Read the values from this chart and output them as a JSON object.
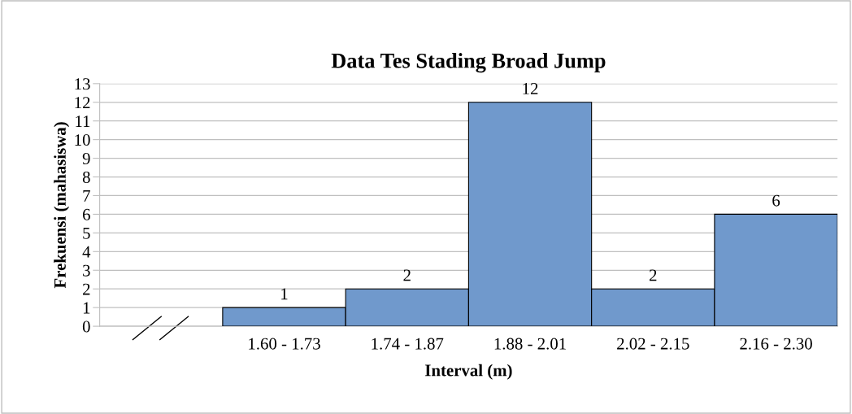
{
  "chart_data": {
    "type": "bar",
    "title": "Data Tes Stading Broad Jump",
    "xlabel": "Interval (m)",
    "ylabel": "Frekuensi (mahasiswa)",
    "categories": [
      null,
      "1.60 - 1.73",
      "1.74 - 1.87",
      "1.88 - 2.01",
      "2.02 - 2.15",
      "2.16 - 2.30"
    ],
    "values": [
      null,
      1,
      2,
      12,
      2,
      6
    ],
    "color": "#7099cc",
    "ylim": [
      0,
      13
    ],
    "yticks": [
      0,
      1,
      2,
      3,
      4,
      5,
      6,
      7,
      8,
      9,
      10,
      11,
      12,
      13
    ],
    "grid": "y",
    "data_labels": true
  }
}
